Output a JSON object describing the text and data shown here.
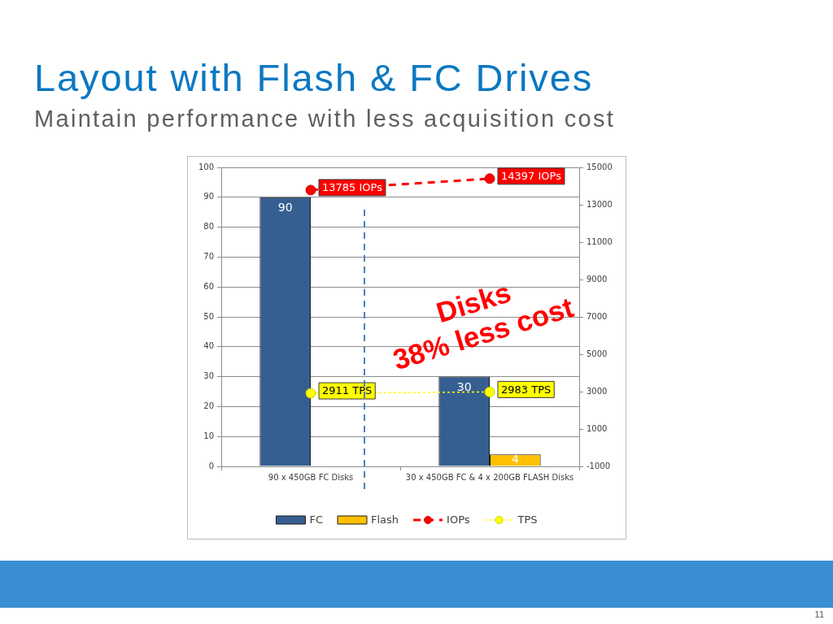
{
  "chart_data": {
    "type": "bar",
    "title": "Layout with Flash & FC Drives",
    "subtitle": "Maintain performance with less acquisition cost",
    "categories": [
      "90 x 450GB FC Disks",
      "30 x 450GB FC & 4 x 200GB FLASH Disks"
    ],
    "series": [
      {
        "name": "FC",
        "color": "#365f91",
        "values": [
          90,
          30
        ],
        "value_labels": [
          "90",
          "30"
        ]
      },
      {
        "name": "Flash",
        "color": "#ffc000",
        "values": [
          null,
          4
        ],
        "value_labels": [
          null,
          "4"
        ]
      },
      {
        "name": "IOPs",
        "type": "line",
        "axis": "y2",
        "color": "#ff0000",
        "values": [
          13785,
          14397
        ],
        "value_labels": [
          "13785 IOPs",
          "14397 IOPs"
        ],
        "marker": "circle",
        "line_style": "dashed"
      },
      {
        "name": "TPS",
        "type": "line",
        "axis": "y2",
        "color": "#ffff00",
        "values": [
          2911,
          2983
        ],
        "value_labels": [
          "2911 TPS",
          "2983 TPS"
        ],
        "marker": "circle",
        "line_style": "dotted"
      }
    ],
    "ylim": [
      0,
      100
    ],
    "yticks": [
      0,
      10,
      20,
      30,
      40,
      50,
      60,
      70,
      80,
      90,
      100
    ],
    "y2lim": [
      -1000,
      15000
    ],
    "y2ticks": [
      -1000,
      1000,
      3000,
      5000,
      7000,
      9000,
      11000,
      13000,
      15000
    ],
    "grid": "y",
    "legend": "bottom",
    "annotations": [
      "Disks\n38% less cost",
      "11"
    ]
  }
}
